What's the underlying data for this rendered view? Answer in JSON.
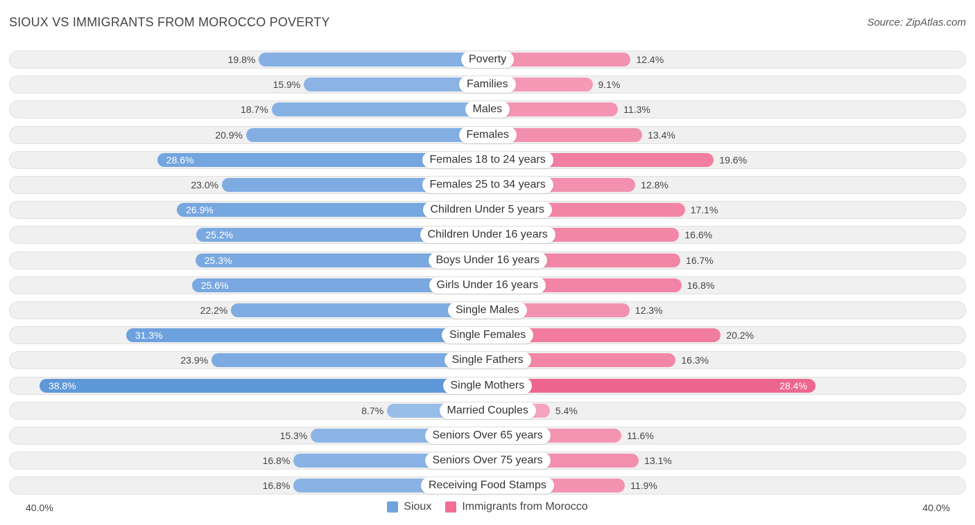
{
  "chart_data": {
    "type": "bar",
    "orientation": "diverging-horizontal",
    "title": "SIOUX VS IMMIGRANTS FROM MOROCCO POVERTY",
    "source": "Source: ZipAtlas.com",
    "categories": [
      "Poverty",
      "Families",
      "Males",
      "Females",
      "Females 18 to 24 years",
      "Females 25 to 34 years",
      "Children Under 5 years",
      "Children Under 16 years",
      "Boys Under 16 years",
      "Girls Under 16 years",
      "Single Males",
      "Single Females",
      "Single Fathers",
      "Single Mothers",
      "Married Couples",
      "Seniors Over 65 years",
      "Seniors Over 75 years",
      "Receiving Food Stamps"
    ],
    "series": [
      {
        "name": "Sioux",
        "color": "#6fa3dd",
        "values": [
          19.8,
          15.9,
          18.7,
          20.9,
          28.6,
          23.0,
          26.9,
          25.2,
          25.3,
          25.6,
          22.2,
          31.3,
          23.9,
          38.8,
          8.7,
          15.3,
          16.8,
          16.8
        ],
        "labels": [
          "19.8%",
          "15.9%",
          "18.7%",
          "20.9%",
          "28.6%",
          "23.0%",
          "26.9%",
          "25.2%",
          "25.3%",
          "25.6%",
          "22.2%",
          "31.3%",
          "23.9%",
          "38.8%",
          "8.7%",
          "15.3%",
          "16.8%",
          "16.8%"
        ]
      },
      {
        "name": "Immigrants from Morocco",
        "color": "#f06d96",
        "values": [
          12.4,
          9.1,
          11.3,
          13.4,
          19.6,
          12.8,
          17.1,
          16.6,
          16.7,
          16.8,
          12.3,
          20.2,
          16.3,
          28.4,
          5.4,
          11.6,
          13.1,
          11.9
        ],
        "labels": [
          "12.4%",
          "9.1%",
          "11.3%",
          "13.4%",
          "19.6%",
          "12.8%",
          "17.1%",
          "16.6%",
          "16.7%",
          "16.8%",
          "12.3%",
          "20.2%",
          "16.3%",
          "28.4%",
          "5.4%",
          "11.6%",
          "13.1%",
          "11.9%"
        ]
      }
    ],
    "xlim": [
      -40,
      40
    ],
    "axis_left_label": "40.0%",
    "axis_right_label": "40.0%",
    "legend_position": "bottom-center"
  }
}
